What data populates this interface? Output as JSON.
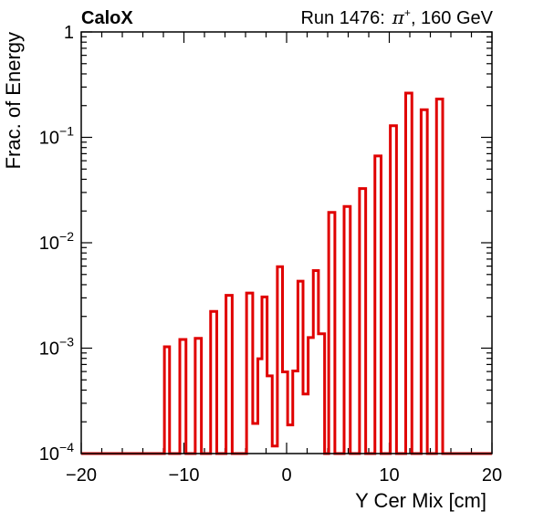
{
  "header": {
    "experiment": "CaloX",
    "run_label": "Run 1476:",
    "particle": "π",
    "particle_charge": "+",
    "beam_energy": ", 160 GeV"
  },
  "chart_data": {
    "type": "histogram",
    "xlabel": "Y Cer Mix [cm]",
    "ylabel": "Frac. of Energy",
    "xlim": [
      -20,
      20
    ],
    "ylim": [
      0.0001,
      1
    ],
    "yscale": "log",
    "x_ticks": [
      "−20",
      "−10",
      "0",
      "10",
      "20"
    ],
    "y_ticks": [
      {
        "base": "1",
        "exp": ""
      },
      {
        "base": "10",
        "exp": "−1"
      },
      {
        "base": "10",
        "exp": "−2"
      },
      {
        "base": "10",
        "exp": "−3"
      },
      {
        "base": "10",
        "exp": "−4"
      }
    ],
    "grid": false,
    "line_color": "#e00000",
    "bins": [
      {
        "x0": -11.9,
        "x1": -11.4,
        "y": 0.00103
      },
      {
        "x0": -10.4,
        "x1": -9.8,
        "y": 0.00121
      },
      {
        "x0": -8.9,
        "x1": -8.3,
        "y": 0.00124
      },
      {
        "x0": -7.4,
        "x1": -6.8,
        "y": 0.00223
      },
      {
        "x0": -5.9,
        "x1": -5.3,
        "y": 0.00317
      },
      {
        "x0": -3.9,
        "x1": -3.3,
        "y": 0.00333
      },
      {
        "x0": -3.3,
        "x1": -2.8,
        "y": 0.000193
      },
      {
        "x0": -2.8,
        "x1": -2.4,
        "y": 0.000793
      },
      {
        "x0": -2.4,
        "x1": -1.9,
        "y": 0.00306
      },
      {
        "x0": -1.9,
        "x1": -1.4,
        "y": 0.000546
      },
      {
        "x0": -1.4,
        "x1": -0.9,
        "y": 0.000118
      },
      {
        "x0": -0.9,
        "x1": -0.4,
        "y": 0.00592
      },
      {
        "x0": -0.4,
        "x1": 0.1,
        "y": 0.000595
      },
      {
        "x0": 0.1,
        "x1": 0.6,
        "y": 0.000187
      },
      {
        "x0": 0.6,
        "x1": 1.1,
        "y": 0.000607
      },
      {
        "x0": 1.1,
        "x1": 1.6,
        "y": 0.00432
      },
      {
        "x0": 1.6,
        "x1": 2.1,
        "y": 0.000367
      },
      {
        "x0": 2.1,
        "x1": 2.6,
        "y": 0.00126
      },
      {
        "x0": 2.6,
        "x1": 3.1,
        "y": 0.00544
      },
      {
        "x0": 3.1,
        "x1": 3.7,
        "y": 0.00137
      },
      {
        "x0": 4.1,
        "x1": 4.7,
        "y": 0.0194
      },
      {
        "x0": 5.6,
        "x1": 6.2,
        "y": 0.0221
      },
      {
        "x0": 7.1,
        "x1": 7.7,
        "y": 0.0327
      },
      {
        "x0": 8.6,
        "x1": 9.2,
        "y": 0.0666
      },
      {
        "x0": 10.1,
        "x1": 10.7,
        "y": 0.129
      },
      {
        "x0": 11.6,
        "x1": 12.2,
        "y": 0.263
      },
      {
        "x0": 13.1,
        "x1": 13.7,
        "y": 0.183
      },
      {
        "x0": 14.6,
        "x1": 15.2,
        "y": 0.231
      }
    ]
  }
}
